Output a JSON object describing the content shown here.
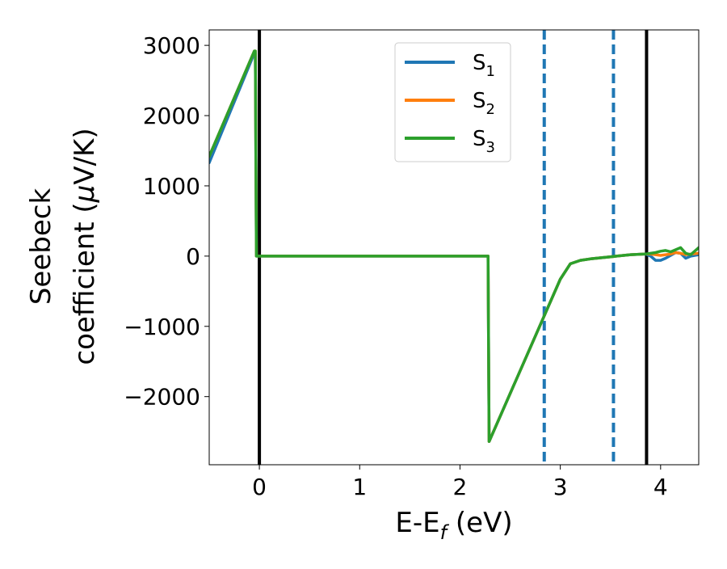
{
  "chart_data": {
    "type": "line",
    "title": "",
    "xlabel": {
      "main": "E-E",
      "sub": "f",
      "tail": " (eV)"
    },
    "ylabel": {
      "line1": "Seebeck",
      "line2_prefix": "coefficient  (",
      "mu": "μ",
      "line2_suffix": "V/K)"
    },
    "xlim": [
      -0.5,
      4.38
    ],
    "ylim": [
      -2970,
      3220
    ],
    "xticks": [
      {
        "value": 0,
        "label": "0"
      },
      {
        "value": 1,
        "label": "1"
      },
      {
        "value": 2,
        "label": "2"
      },
      {
        "value": 3,
        "label": "3"
      },
      {
        "value": 4,
        "label": "4"
      }
    ],
    "yticks": [
      {
        "value": 3000,
        "label": "3000"
      },
      {
        "value": 2000,
        "label": "2000"
      },
      {
        "value": 1000,
        "label": "1000"
      },
      {
        "value": 0,
        "label": "0"
      },
      {
        "value": -1000,
        "label": "−1000"
      },
      {
        "value": -2000,
        "label": "−2000"
      }
    ],
    "grid": false,
    "legend_position": "top-center",
    "vlines": [
      {
        "x": 0,
        "color": "#000000",
        "style": "solid"
      },
      {
        "x": 3.86,
        "color": "#000000",
        "style": "solid"
      },
      {
        "x": 2.84,
        "color": "#1f77b4",
        "style": "dashed"
      },
      {
        "x": 3.53,
        "color": "#1f77b4",
        "style": "dashed"
      }
    ],
    "series": [
      {
        "name": "S",
        "name_sub": "1",
        "color": "#1f77b4",
        "x": [
          -0.5,
          -0.05,
          -0.04,
          -0.03,
          2.27,
          2.28,
          2.29,
          3.0,
          3.1,
          3.2,
          3.3,
          3.5,
          3.7,
          3.85,
          3.9,
          3.95,
          4.0,
          4.05,
          4.1,
          4.15,
          4.2,
          4.25,
          4.3,
          4.38
        ],
        "values": [
          1330,
          2890,
          2890,
          0,
          0,
          0,
          -2640,
          -330,
          -110,
          -60,
          -40,
          -10,
          20,
          30,
          0,
          -60,
          -60,
          -30,
          10,
          50,
          40,
          -30,
          0,
          20
        ]
      },
      {
        "name": "S",
        "name_sub": "2",
        "color": "#ff7f0e",
        "x": [
          -0.5,
          -0.05,
          -0.04,
          -0.03,
          2.27,
          2.28,
          2.29,
          3.0,
          3.1,
          3.2,
          3.3,
          3.5,
          3.7,
          3.85,
          3.9,
          3.95,
          4.0,
          4.05,
          4.1,
          4.15,
          4.2,
          4.25,
          4.3,
          4.38
        ],
        "values": [
          1420,
          2920,
          2920,
          0,
          0,
          0,
          -2640,
          -330,
          -110,
          -60,
          -40,
          -10,
          20,
          30,
          30,
          20,
          10,
          20,
          30,
          50,
          40,
          20,
          30,
          40
        ]
      },
      {
        "name": "S",
        "name_sub": "3",
        "color": "#2ca02c",
        "x": [
          -0.5,
          -0.05,
          -0.04,
          -0.03,
          2.27,
          2.28,
          2.29,
          3.0,
          3.1,
          3.2,
          3.3,
          3.5,
          3.7,
          3.85,
          3.9,
          3.95,
          4.0,
          4.05,
          4.1,
          4.15,
          4.2,
          4.25,
          4.3,
          4.38
        ],
        "values": [
          1420,
          2920,
          2920,
          0,
          0,
          0,
          -2640,
          -330,
          -110,
          -60,
          -40,
          -10,
          20,
          30,
          40,
          50,
          70,
          80,
          60,
          90,
          120,
          40,
          20,
          120
        ]
      }
    ]
  }
}
